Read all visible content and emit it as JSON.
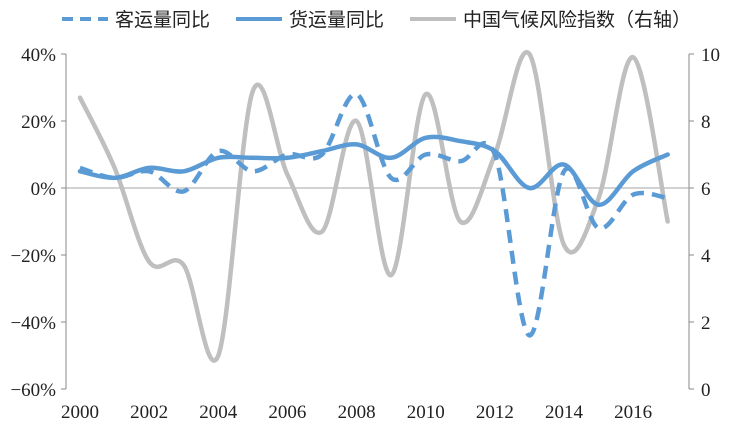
{
  "chart_data": {
    "type": "line",
    "title": "",
    "xlabel": "",
    "ylabel": "",
    "x_ticks": [
      "2000",
      "2002",
      "2004",
      "2006",
      "2008",
      "2010",
      "2012",
      "2014",
      "2016"
    ],
    "y_left": {
      "ticks": [
        "40%",
        "20%",
        "0%",
        "-20%",
        "-40%",
        "-60%"
      ],
      "lim": [
        -60,
        40
      ]
    },
    "y_right": {
      "ticks": [
        "10",
        "8",
        "6",
        "4",
        "2",
        "0"
      ],
      "lim": [
        0,
        10
      ]
    },
    "legend_position": "top",
    "grid": false,
    "series": [
      {
        "name": "客运量同比",
        "axis": "left",
        "style": "dashed",
        "color": "#5B9BD5",
        "x": [
          2000,
          2001,
          2002,
          2003,
          2004,
          2005,
          2006,
          2007,
          2008,
          2009,
          2010,
          2011,
          2012,
          2013,
          2014,
          2015,
          2016,
          2017
        ],
        "values": [
          6,
          3,
          5,
          -1,
          11,
          5,
          10,
          10,
          28,
          3,
          10,
          8,
          10,
          -44,
          5,
          -12,
          -2,
          -3
        ]
      },
      {
        "name": "货运量同比",
        "axis": "left",
        "style": "solid",
        "color": "#5B9BD5",
        "x": [
          2000,
          2001,
          2002,
          2003,
          2004,
          2005,
          2006,
          2007,
          2008,
          2009,
          2010,
          2011,
          2012,
          2013,
          2014,
          2015,
          2016,
          2017
        ],
        "values": [
          5,
          3,
          6,
          5,
          9,
          9,
          9,
          11,
          13,
          9,
          15,
          14,
          11,
          0,
          7,
          -5,
          5,
          10
        ]
      },
      {
        "name": "中国气候风险指数（右轴）",
        "axis": "right",
        "style": "solid",
        "color": "#BFBFBF",
        "x": [
          2000,
          2001,
          2002,
          2003,
          2004,
          2005,
          2006,
          2007,
          2008,
          2009,
          2010,
          2011,
          2012,
          2013,
          2014,
          2015,
          2016,
          2017
        ],
        "values": [
          8.7,
          6.6,
          3.8,
          3.7,
          1.0,
          8.9,
          6.4,
          4.7,
          8.0,
          3.4,
          8.8,
          5.0,
          7.0,
          10.0,
          4.3,
          5.7,
          9.9,
          5.0
        ]
      }
    ]
  }
}
